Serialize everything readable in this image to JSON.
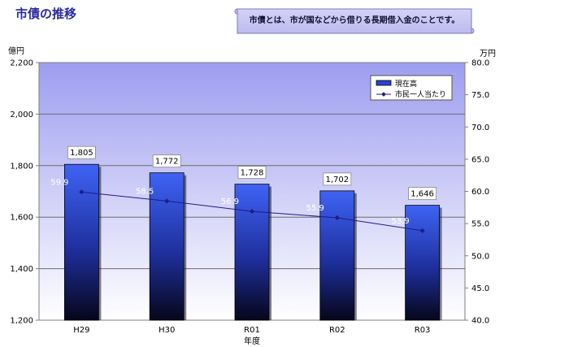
{
  "page": {
    "title": "市債の推移",
    "note": "市債とは、市が国などから借りる長期借入金のことです。"
  },
  "chart_data": {
    "type": "bar",
    "categories": [
      "H29",
      "H30",
      "R01",
      "R02",
      "R03"
    ],
    "xlabel": "年度",
    "y_left": {
      "unit": "億円",
      "lim": [
        1200,
        2200
      ],
      "ticks": [
        "1,200",
        "1,400",
        "1,600",
        "1,800",
        "2,000",
        "2,200"
      ]
    },
    "y_right": {
      "unit": "万円",
      "lim": [
        40,
        80
      ],
      "ticks": [
        "40.0",
        "45.0",
        "50.0",
        "55.0",
        "60.0",
        "65.0",
        "70.0",
        "75.0",
        "80.0"
      ]
    },
    "series": [
      {
        "name": "現在高",
        "type": "bar",
        "axis": "left",
        "values": [
          1805,
          1772,
          1728,
          1702,
          1646
        ],
        "labels": [
          "1,805",
          "1,772",
          "1,728",
          "1,702",
          "1,646"
        ]
      },
      {
        "name": "市民一人当たり",
        "type": "line",
        "axis": "right",
        "values": [
          59.9,
          58.5,
          56.9,
          55.9,
          53.9
        ],
        "labels": [
          "59.9",
          "58.5",
          "56.9",
          "55.9",
          "53.9"
        ]
      }
    ],
    "legend": "top-right",
    "grid": true,
    "colors": {
      "bar_top": "#3f63f5",
      "bar_bottom": "#06061a",
      "line": "#1c1c8a",
      "plot_top": "#9d9df0",
      "plot_bottom": "#ffffff"
    }
  }
}
